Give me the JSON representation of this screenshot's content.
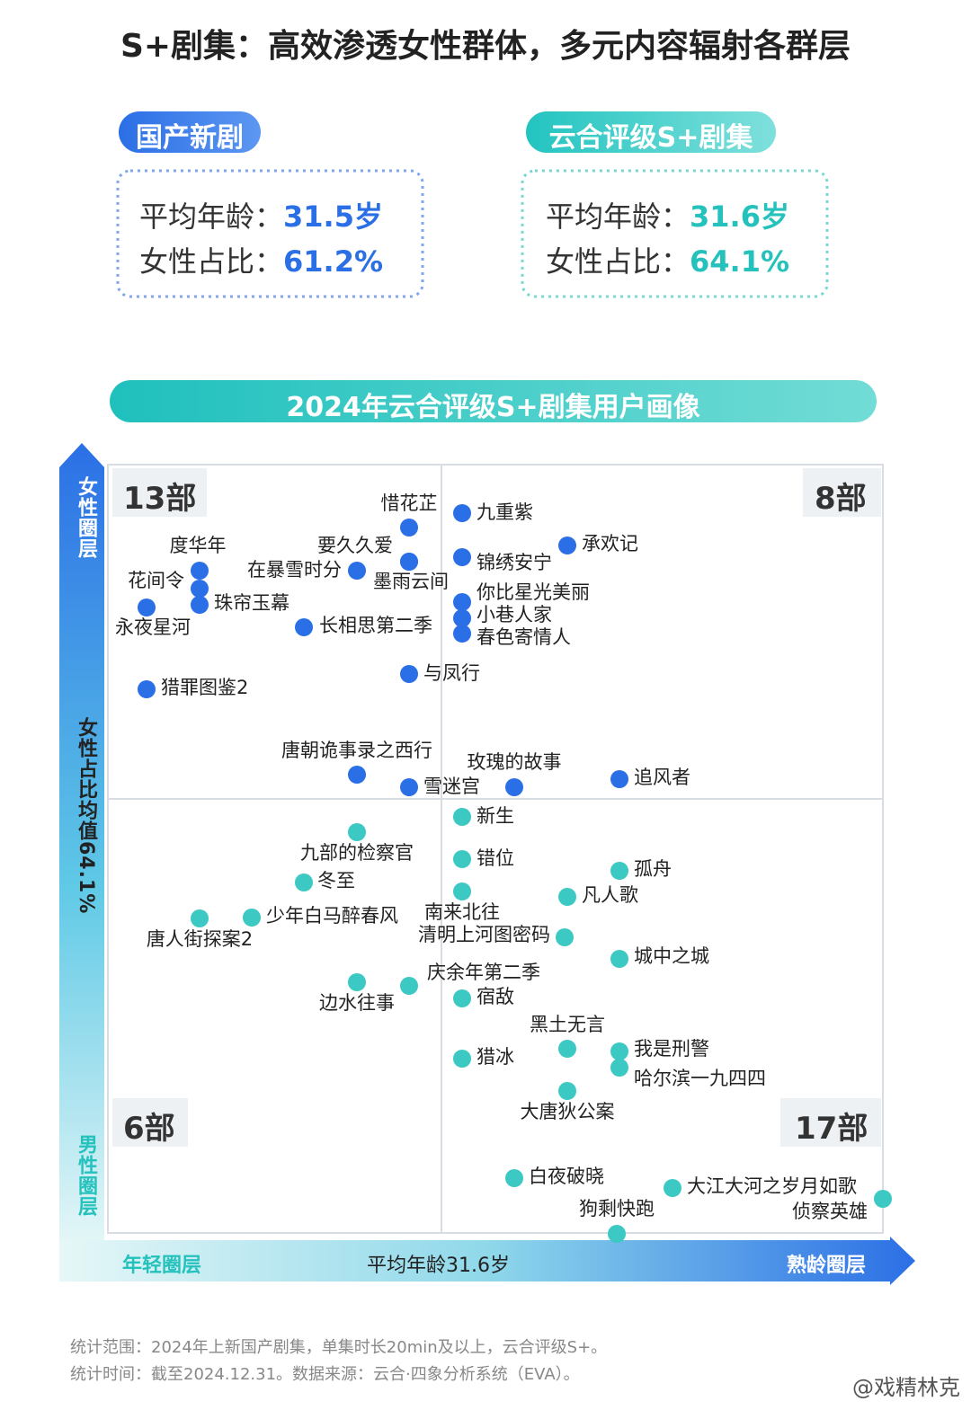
{
  "title": "S+剧集：高效渗透女性群体，多元内容辐射各群层",
  "cards": [
    {
      "tag": "国产新剧",
      "rows": [
        {
          "label": "平均年龄：",
          "value": "31.5岁"
        },
        {
          "label": "女性占比：",
          "value": "61.2%"
        }
      ]
    },
    {
      "tag": "云合评级S+剧集",
      "rows": [
        {
          "label": "平均年龄：",
          "value": "31.6岁"
        },
        {
          "label": "女性占比：",
          "value": "64.1%"
        }
      ]
    }
  ],
  "banner": "2024年云合评级S+剧集用户画像",
  "chart": {
    "y_axis": {
      "top": "女性圈层",
      "middle": "女性占比均值64.1%",
      "bottom": "男性圈层"
    },
    "x_axis": {
      "left": "年轻圈层",
      "middle": "平均年龄31.6岁",
      "right": "熟龄圈层"
    },
    "quadrant_counts": {
      "top_left": "13部",
      "top_right": "8部",
      "bottom_left": "6部",
      "bottom_right": "17部"
    },
    "points": [
      {
        "name": "惜花芷"
      },
      {
        "name": "九重紫"
      },
      {
        "name": "承欢记"
      },
      {
        "name": "度华年"
      },
      {
        "name": "要久久爱"
      },
      {
        "name": "在暴雪时分"
      },
      {
        "name": "锦绣安宁"
      },
      {
        "name": "花间令"
      },
      {
        "name": "墨雨云间"
      },
      {
        "name": "珠帘玉幕"
      },
      {
        "name": "永夜星河"
      },
      {
        "name": "你比星光美丽"
      },
      {
        "name": "小巷人家"
      },
      {
        "name": "春色寄情人"
      },
      {
        "name": "长相思第二季"
      },
      {
        "name": "与凤行"
      },
      {
        "name": "猎罪图鉴2"
      },
      {
        "name": "唐朝诡事录之西行"
      },
      {
        "name": "雪迷宫"
      },
      {
        "name": "玫瑰的故事"
      },
      {
        "name": "追风者"
      },
      {
        "name": "新生"
      },
      {
        "name": "九部的检察官"
      },
      {
        "name": "错位"
      },
      {
        "name": "孤舟"
      },
      {
        "name": "冬至"
      },
      {
        "name": "南来北往"
      },
      {
        "name": "凡人歌"
      },
      {
        "name": "少年白马醉春风"
      },
      {
        "name": "唐人街探案2"
      },
      {
        "name": "清明上河图密码"
      },
      {
        "name": "城中之城"
      },
      {
        "name": "庆余年第二季"
      },
      {
        "name": "边水往事"
      },
      {
        "name": "宿敌"
      },
      {
        "name": "黑土无言"
      },
      {
        "name": "我是刑警"
      },
      {
        "name": "哈尔滨一九四四"
      },
      {
        "name": "猎冰"
      },
      {
        "name": "大唐狄公案"
      },
      {
        "name": "白夜破晓"
      },
      {
        "name": "大江大河之岁月如歌"
      },
      {
        "name": "侦察英雄"
      },
      {
        "name": "狗剩快跑"
      }
    ]
  },
  "footer": [
    "统计范围：2024年上新国产剧集，单集时长20min及以上，云合评级S+。",
    "统计时间：截至2024.12.31。数据来源：云合·四象分析系统（EVA）。"
  ],
  "watermark": "@戏精林克"
}
